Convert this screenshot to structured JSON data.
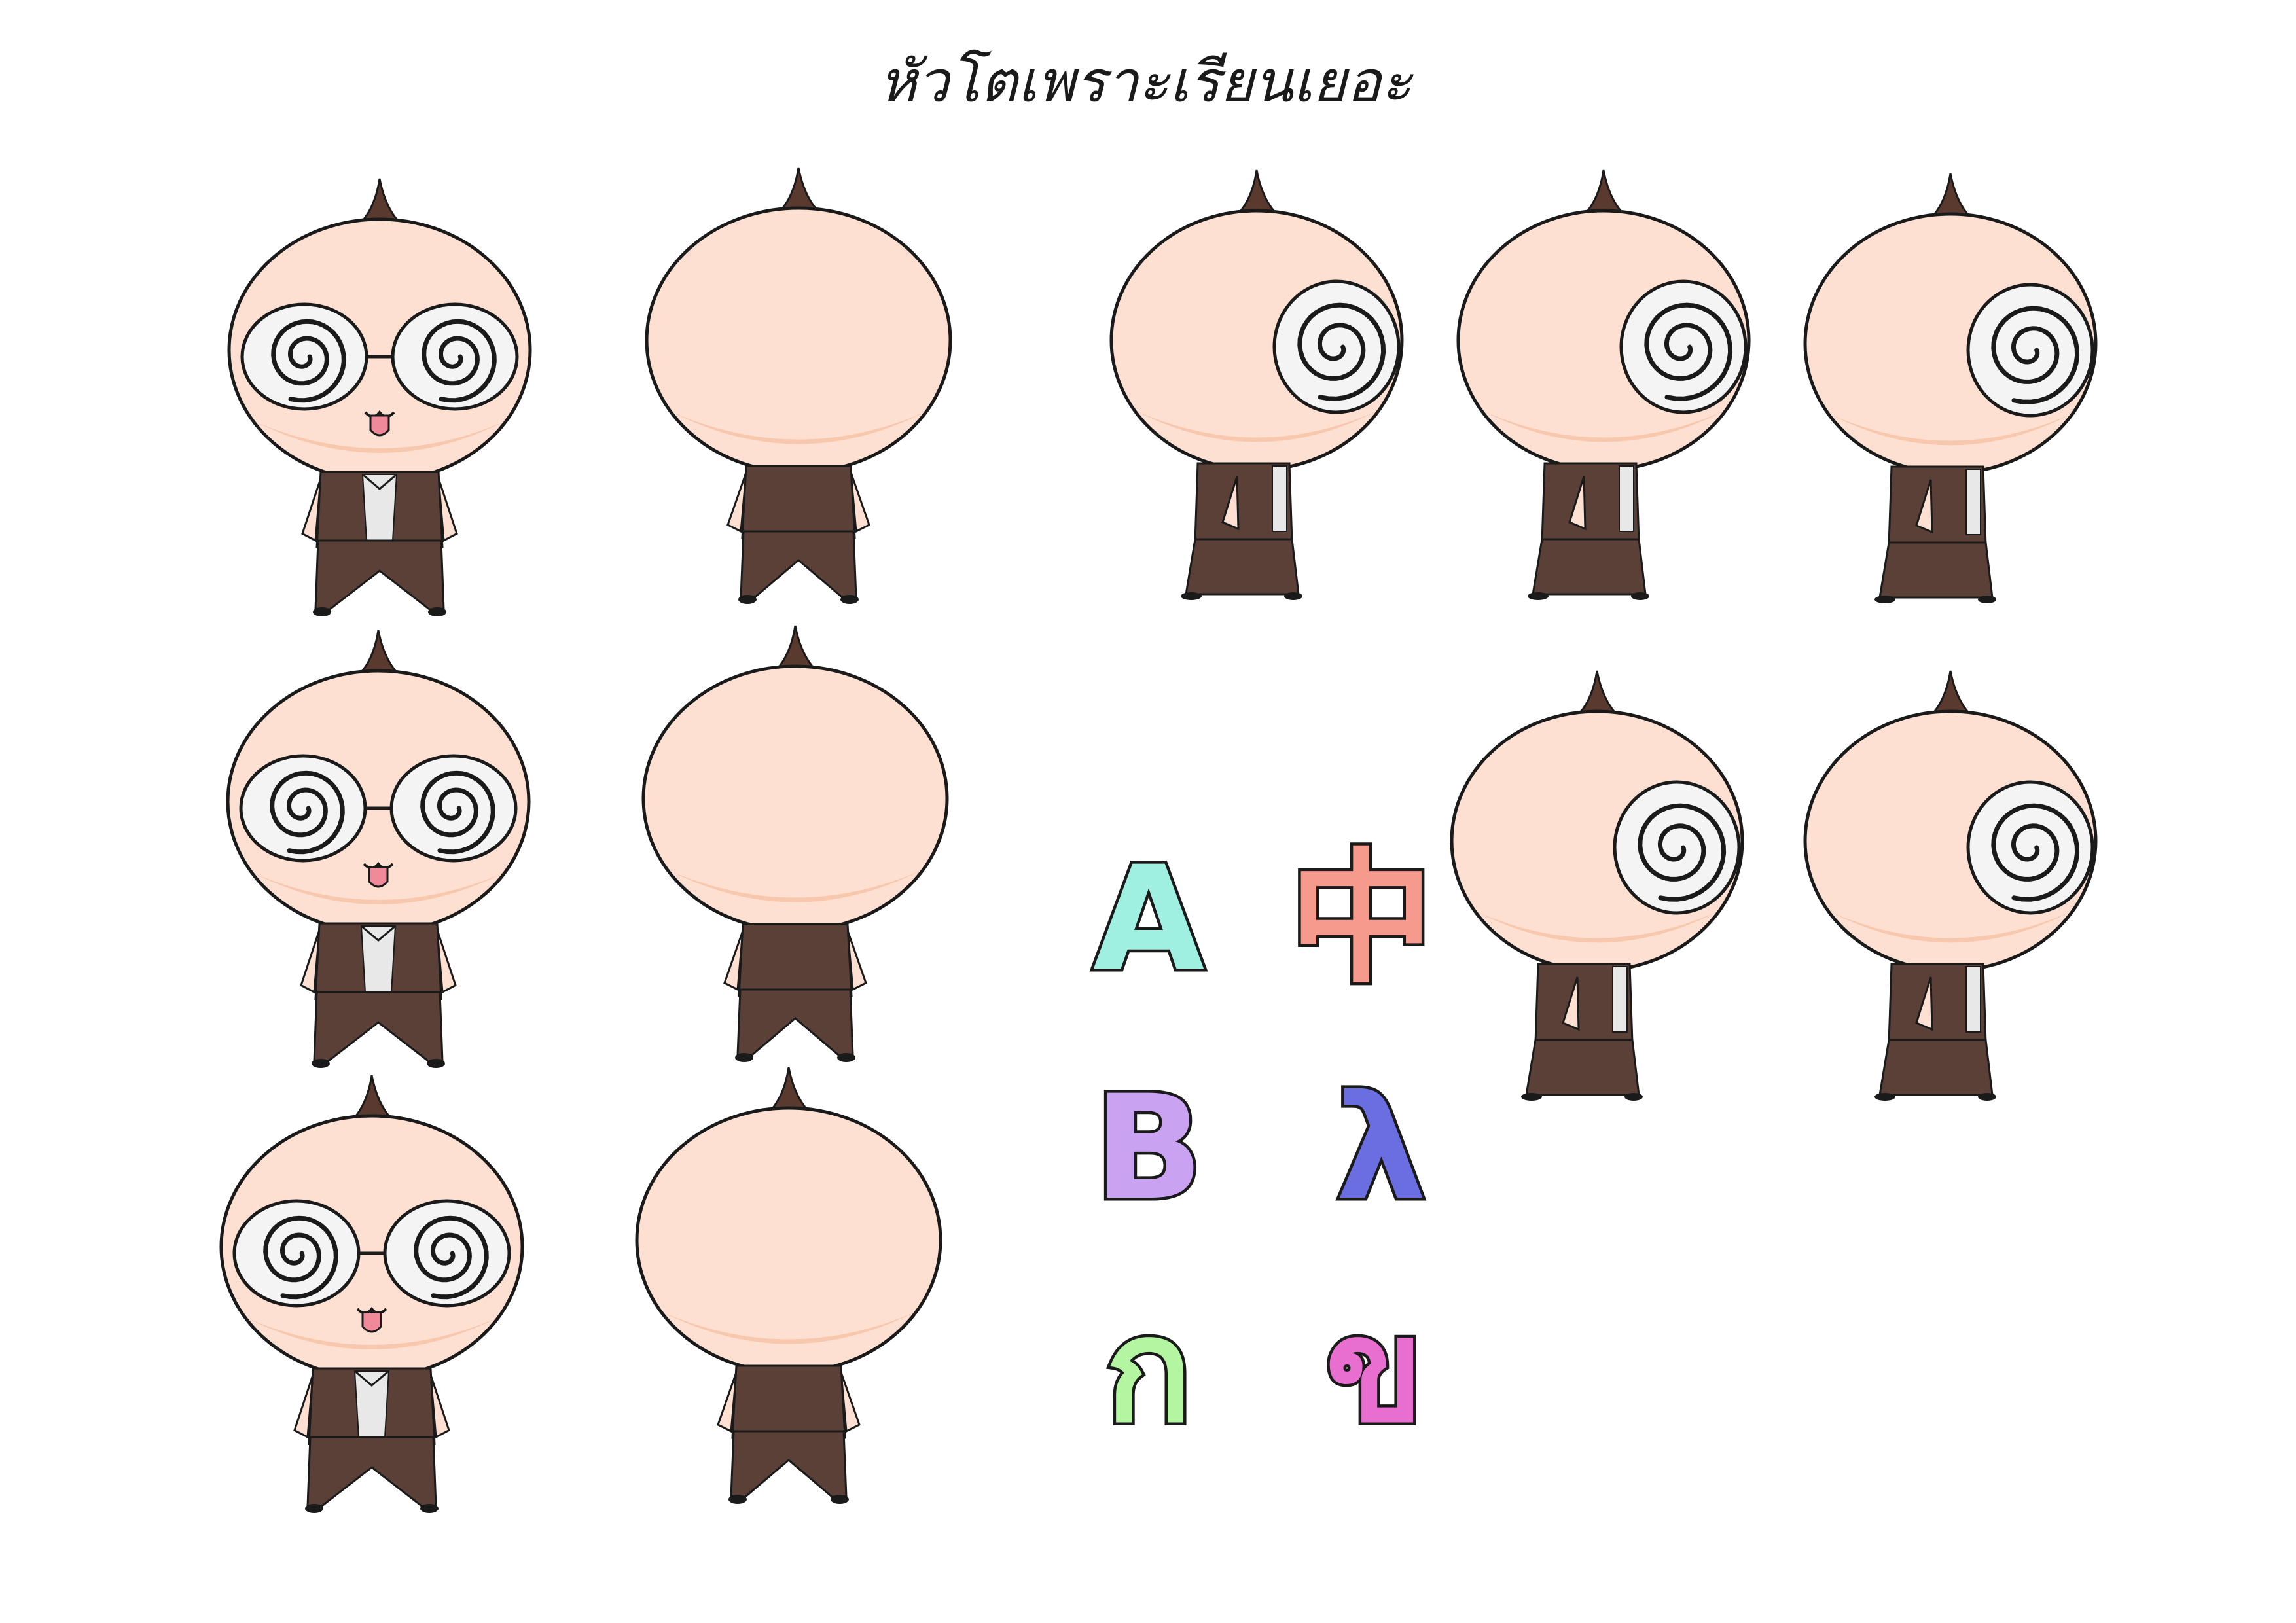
{
  "sheet": {
    "title": "หัวโตเพราะเรียนเยอะ",
    "colors": {
      "skin": "#fde0d2",
      "skin_shade": "#f7c7ae",
      "hair": "#5a3a2e",
      "suit": "#5a4036",
      "shirt": "#e8e8e8",
      "outline": "#1a1a1a",
      "glasses": "#f4f4f4",
      "tongue": "#f08a9b"
    },
    "characters": [
      {
        "view": "front",
        "icon": "character-front-icon"
      },
      {
        "view": "back",
        "icon": "character-back-icon"
      },
      {
        "view": "side-walk-1",
        "icon": "character-side-icon"
      },
      {
        "view": "side-walk-2",
        "icon": "character-side-icon"
      },
      {
        "view": "side-walk-3",
        "icon": "character-side-icon"
      },
      {
        "view": "front-2",
        "icon": "character-front-icon"
      },
      {
        "view": "back-2",
        "icon": "character-back-icon"
      },
      {
        "view": "side-walk-4",
        "icon": "character-side-icon"
      },
      {
        "view": "side-walk-5",
        "icon": "character-side-icon"
      },
      {
        "view": "front-3",
        "icon": "character-front-icon"
      },
      {
        "view": "back-3",
        "icon": "character-back-icon"
      }
    ],
    "letters": [
      {
        "char": "A",
        "color": "#9ff0e0"
      },
      {
        "char": "中",
        "color": "#f59a8c"
      },
      {
        "char": "B",
        "color": "#c9a2f2"
      },
      {
        "char": "λ",
        "color": "#6b6ee0"
      },
      {
        "char": "ก",
        "color": "#b4f5a2"
      },
      {
        "char": "ข",
        "color": "#e86fcf"
      }
    ]
  }
}
